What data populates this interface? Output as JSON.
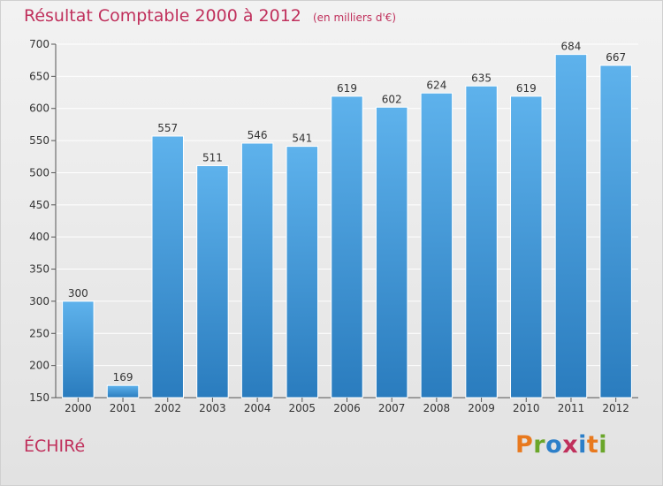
{
  "title": {
    "main": "Résultat Comptable 2000 à 2012",
    "unit": "(en milliers d'€)"
  },
  "commune": "ÉCHIRé",
  "brand": {
    "text": "Proxiti",
    "letters": [
      "P",
      "r",
      "o",
      "x",
      "i",
      "t",
      "i"
    ],
    "colors": [
      "#e8791e",
      "#6aa62a",
      "#2c7fc9",
      "#c0305c",
      "#2c7fc9",
      "#e8791e",
      "#6aa62a"
    ]
  },
  "colors": {
    "title": "#c0305c",
    "bar_light": "#5eb2ec",
    "bar_dark": "#2a7cbe",
    "grid": "#ffffff",
    "axis_text": "#333333"
  },
  "chart_data": {
    "type": "bar",
    "title": "Résultat Comptable 2000 à 2012",
    "xlabel": "",
    "ylabel": "",
    "categories": [
      "2000",
      "2001",
      "2002",
      "2003",
      "2004",
      "2005",
      "2006",
      "2007",
      "2008",
      "2009",
      "2010",
      "2011",
      "2012"
    ],
    "values": [
      300,
      169,
      557,
      511,
      546,
      541,
      619,
      602,
      624,
      635,
      619,
      684,
      667
    ],
    "ylim": [
      150,
      700
    ],
    "yticks": [
      150,
      200,
      250,
      300,
      350,
      400,
      450,
      500,
      550,
      600,
      650,
      700
    ],
    "grid": true
  }
}
